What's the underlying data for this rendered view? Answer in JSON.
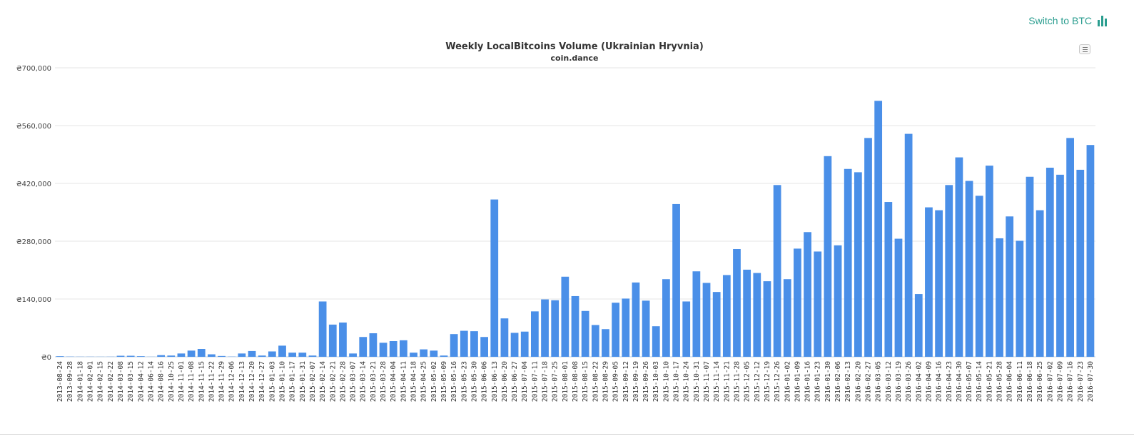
{
  "header": {
    "switch_label": "Switch to BTC",
    "switch_icon": "bar-chart-icon",
    "accent_color": "#2a9d8f"
  },
  "chart_menu_icon": "hamburger-menu-icon",
  "chart_data": {
    "type": "bar",
    "title": "Weekly LocalBitcoins Volume (Ukrainian Hryvnia)",
    "subtitle": "coin.dance",
    "bar_color": "#4a8fe8",
    "grid": true,
    "ylim": [
      0,
      700000
    ],
    "yticks": [
      0,
      140000,
      280000,
      420000,
      560000,
      700000
    ],
    "ytick_labels": [
      "₴0",
      "₴140,000",
      "₴280,000",
      "₴420,000",
      "₴560,000",
      "₴700,000"
    ],
    "categories": [
      "2013-08-24",
      "2013-09-28",
      "2014-01-18",
      "2014-02-01",
      "2014-02-15",
      "2014-02-22",
      "2014-03-08",
      "2014-03-15",
      "2014-04-12",
      "2014-06-14",
      "2014-08-16",
      "2014-10-25",
      "2014-11-01",
      "2014-11-08",
      "2014-11-15",
      "2014-11-22",
      "2014-11-29",
      "2014-12-06",
      "2014-12-13",
      "2014-12-20",
      "2014-12-27",
      "2015-01-03",
      "2015-01-10",
      "2015-01-17",
      "2015-01-31",
      "2015-02-07",
      "2015-02-14",
      "2015-02-21",
      "2015-02-28",
      "2015-03-07",
      "2015-03-14",
      "2015-03-21",
      "2015-03-28",
      "2015-04-04",
      "2015-04-11",
      "2015-04-18",
      "2015-04-25",
      "2015-05-02",
      "2015-05-09",
      "2015-05-16",
      "2015-05-23",
      "2015-05-30",
      "2015-06-06",
      "2015-06-13",
      "2015-06-20",
      "2015-06-27",
      "2015-07-04",
      "2015-07-11",
      "2015-07-18",
      "2015-07-25",
      "2015-08-01",
      "2015-08-08",
      "2015-08-15",
      "2015-08-22",
      "2015-08-29",
      "2015-09-05",
      "2015-09-12",
      "2015-09-19",
      "2015-09-26",
      "2015-10-03",
      "2015-10-10",
      "2015-10-17",
      "2015-10-24",
      "2015-10-31",
      "2015-11-07",
      "2015-11-14",
      "2015-11-21",
      "2015-11-28",
      "2015-12-05",
      "2015-12-12",
      "2015-12-19",
      "2015-12-26",
      "2016-01-02",
      "2016-01-09",
      "2016-01-16",
      "2016-01-23",
      "2016-01-30",
      "2016-02-06",
      "2016-02-13",
      "2016-02-20",
      "2016-02-27",
      "2016-03-05",
      "2016-03-12",
      "2016-03-19",
      "2016-03-26",
      "2016-04-02",
      "2016-04-09",
      "2016-04-16",
      "2016-04-23",
      "2016-04-30",
      "2016-05-07",
      "2016-05-14",
      "2016-05-21",
      "2016-05-28",
      "2016-06-04",
      "2016-06-11",
      "2016-06-18",
      "2016-06-25",
      "2016-07-02",
      "2016-07-09",
      "2016-07-16",
      "2016-07-23",
      "2016-07-30"
    ],
    "values": [
      1500,
      500,
      300,
      300,
      200,
      300,
      2500,
      2500,
      1500,
      200,
      4000,
      3000,
      8000,
      15000,
      19000,
      6000,
      2000,
      500,
      8000,
      14000,
      3000,
      13000,
      27000,
      10000,
      10000,
      3000,
      134000,
      78000,
      83000,
      8000,
      48000,
      57000,
      34000,
      38000,
      40000,
      10000,
      18000,
      15000,
      3000,
      55000,
      63000,
      62000,
      48000,
      381000,
      93000,
      58000,
      61000,
      110000,
      139000,
      137000,
      194000,
      147000,
      111000,
      77000,
      67000,
      131000,
      141000,
      180000,
      136000,
      74000,
      188000,
      370000,
      134000,
      207000,
      179000,
      157000,
      198000,
      261000,
      211000,
      203000,
      183000,
      416000,
      188000,
      262000,
      302000,
      255000,
      486000,
      270000,
      455000,
      447000,
      530000,
      620000,
      375000,
      286000,
      540000,
      152000,
      362000,
      355000,
      416000,
      483000,
      426000,
      390000,
      463000,
      287000,
      340000,
      281000,
      436000,
      355000,
      458000,
      441000,
      530000,
      453000,
      513000
    ]
  }
}
